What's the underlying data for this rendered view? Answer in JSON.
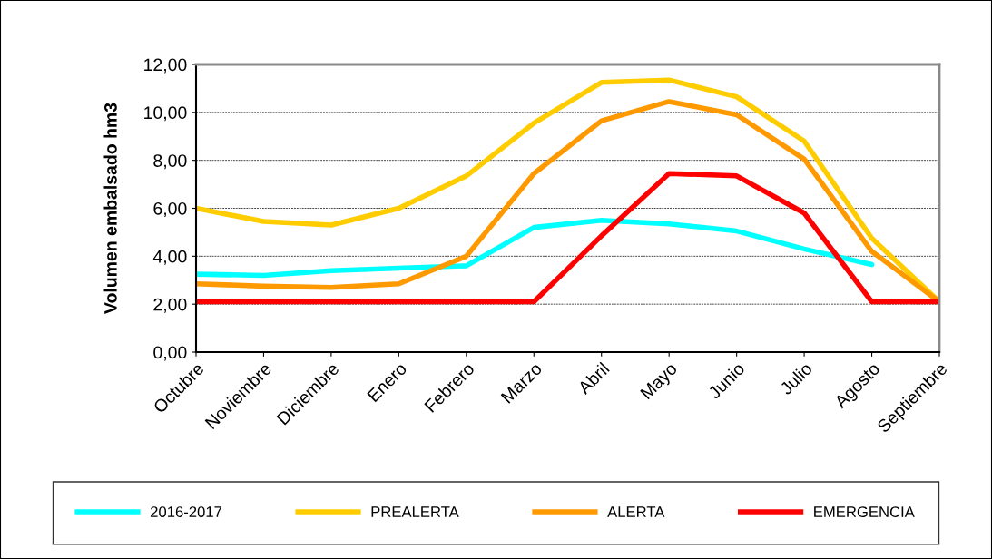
{
  "chart_data": {
    "type": "line",
    "ylabel": "Volumen embalsado hm3",
    "categories": [
      "Octubre",
      "Noviembre",
      "Diciembre",
      "Enero",
      "Febrero",
      "Marzo",
      "Abril",
      "Mayo",
      "Junio",
      "Julio",
      "Agosto",
      "Septiembre"
    ],
    "series": [
      {
        "name": "2016-2017",
        "color": "#00ffff",
        "values": [
          3.25,
          3.2,
          3.4,
          3.5,
          3.6,
          5.2,
          5.5,
          5.35,
          5.05,
          4.3,
          3.65,
          null
        ]
      },
      {
        "name": "PREALERTA",
        "color": "#ffcc00",
        "values": [
          6.0,
          5.45,
          5.3,
          6.0,
          7.35,
          9.55,
          11.25,
          11.35,
          10.65,
          8.8,
          4.75,
          2.1
        ]
      },
      {
        "name": "ALERTA",
        "color": "#ff9900",
        "values": [
          2.85,
          2.75,
          2.7,
          2.85,
          4.0,
          7.45,
          9.65,
          10.45,
          9.9,
          8.05,
          4.2,
          2.1
        ]
      },
      {
        "name": "EMERGENCIA",
        "color": "#ff0000",
        "values": [
          2.1,
          2.1,
          2.1,
          2.1,
          2.1,
          2.1,
          4.85,
          7.45,
          7.35,
          5.8,
          2.1,
          2.1
        ]
      }
    ],
    "ylim": [
      0,
      12
    ],
    "yticks": [
      {
        "value": 0,
        "label": "0,00"
      },
      {
        "value": 2,
        "label": "2,00"
      },
      {
        "value": 4,
        "label": "4,00"
      },
      {
        "value": 6,
        "label": "6,00"
      },
      {
        "value": 8,
        "label": "8,00"
      },
      {
        "value": 10,
        "label": "10,00"
      },
      {
        "value": 12,
        "label": "12,00"
      }
    ],
    "grid": "y",
    "legend": "bottom",
    "marker": "none",
    "line_style": "solid"
  }
}
